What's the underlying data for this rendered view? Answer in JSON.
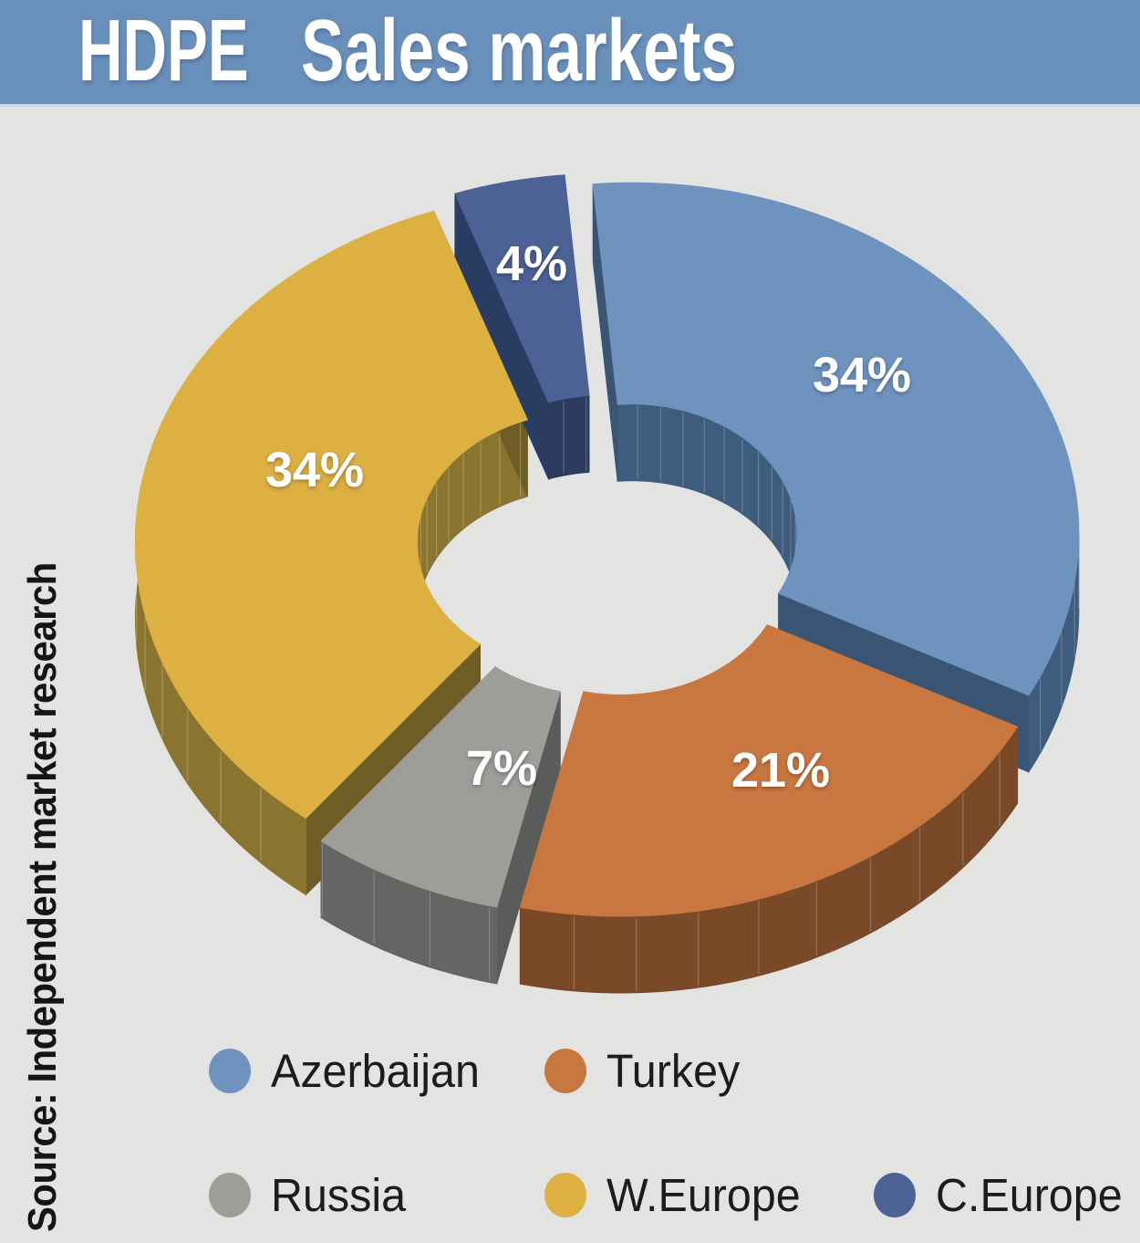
{
  "header": {
    "product": "HDPE",
    "title": "Sales markets",
    "bg_color": "#698fbb",
    "text_color": "#ffffff"
  },
  "page": {
    "background": "#e3e3e1"
  },
  "source": {
    "label": "Source: Independent market research"
  },
  "chart_data": {
    "type": "pie",
    "variant": "3d-exploded-donut",
    "title": "HDPE Sales markets",
    "unit": "%",
    "total": 100,
    "direction": "clockwise",
    "legend_position": "bottom",
    "percent_label_color": "#ffffff",
    "slices": [
      {
        "label": "Azerbaijan",
        "value": 34,
        "display": "34%",
        "color": "#6e93bf",
        "side_color": "#3d5c7e",
        "cut_color": "#3a5574"
      },
      {
        "label": "Turkey",
        "value": 21,
        "display": "21%",
        "color": "#c97740",
        "side_color": "#7a4a28",
        "cut_color": "#6f431f"
      },
      {
        "label": "Russia",
        "value": 7,
        "display": "7%",
        "color": "#9d9d9a",
        "side_color": "#636663",
        "cut_color": "#595c59"
      },
      {
        "label": "W.Europe",
        "value": 34,
        "display": "34%",
        "color": "#ddb042",
        "side_color": "#8a7530",
        "cut_color": "#6e5d25"
      },
      {
        "label": "C.Europe",
        "value": 4,
        "display": "4%",
        "color": "#4c6196",
        "side_color": "#2c3a5e",
        "cut_color": "#2b3c63"
      }
    ],
    "legend_rows": [
      [
        "Azerbaijan",
        "Turkey"
      ],
      [
        "Russia",
        "W.Europe",
        "C.Europe"
      ]
    ]
  }
}
